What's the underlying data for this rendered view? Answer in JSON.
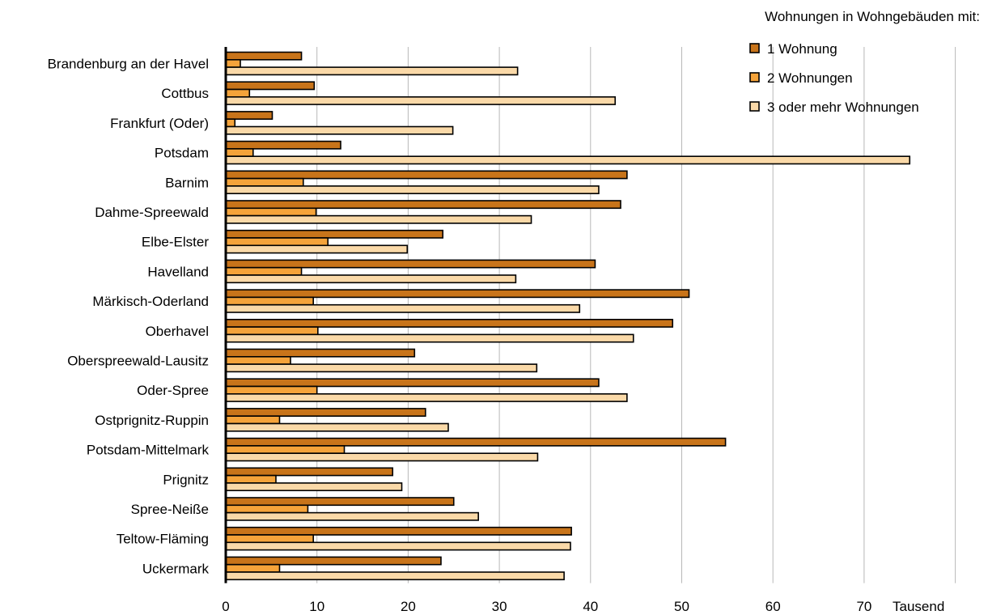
{
  "chart_data": {
    "type": "bar",
    "orientation": "horizontal",
    "categories": [
      "Brandenburg an der Havel",
      "Cottbus",
      "Frankfurt (Oder)",
      "Potsdam",
      "Barnim",
      "Dahme-Spreewald",
      "Elbe-Elster",
      "Havelland",
      "Märkisch-Oderland",
      "Oberhavel",
      "Oberspreewald-Lausitz",
      "Oder-Spree",
      "Ostprignitz-Ruppin",
      "Potsdam-Mittelmark",
      "Prignitz",
      "Spree-Neiße",
      "Teltow-Fläming",
      "Uckermark"
    ],
    "series": [
      {
        "name": "1 Wohnung",
        "color": "#c8741a",
        "values": [
          8.3,
          9.7,
          5.1,
          12.6,
          44.0,
          43.3,
          23.8,
          40.5,
          50.8,
          49.0,
          20.7,
          40.9,
          21.9,
          54.8,
          18.3,
          25.0,
          37.9,
          23.6
        ]
      },
      {
        "name": "2 Wohnungen",
        "color": "#f5a33a",
        "values": [
          1.6,
          2.6,
          1.0,
          3.0,
          8.5,
          9.9,
          11.2,
          8.3,
          9.6,
          10.1,
          7.1,
          10.0,
          5.9,
          13.0,
          5.5,
          9.0,
          9.6,
          5.9
        ]
      },
      {
        "name": "3 oder mehr Wohnungen",
        "color": "#fad9a8",
        "values": [
          32.0,
          42.7,
          24.9,
          75.0,
          40.9,
          33.5,
          19.9,
          31.8,
          38.8,
          44.7,
          34.1,
          44.0,
          24.4,
          34.2,
          19.3,
          27.7,
          37.8,
          37.1
        ]
      }
    ],
    "x_ticks": [
      "0",
      "10",
      "20",
      "30",
      "40",
      "50",
      "60",
      "70"
    ],
    "xlim": [
      0,
      75
    ],
    "unit_label": "Tausend",
    "legend_title": "Wohnungen in Wohngebäuden mit:",
    "legend_position": "top-right",
    "grid": "vertical"
  }
}
